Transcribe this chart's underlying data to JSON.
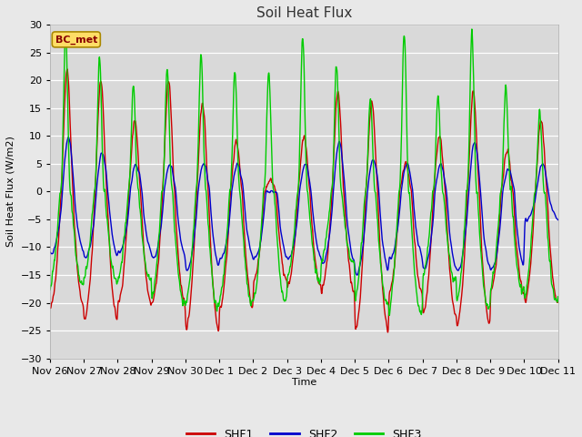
{
  "title": "Soil Heat Flux",
  "xlabel": "Time",
  "ylabel": "Soil Heat Flux (W/m2)",
  "ylim": [
    -30,
    30
  ],
  "yticks": [
    -30,
    -25,
    -20,
    -15,
    -10,
    -5,
    0,
    5,
    10,
    15,
    20,
    25,
    30
  ],
  "fig_facecolor": "#e8e8e8",
  "plot_bg_color": "#d9d9d9",
  "line_colors": {
    "SHF1": "#cc0000",
    "SHF2": "#0000cc",
    "SHF3": "#00cc00"
  },
  "line_width": 1.0,
  "legend_label_box": "BC_met",
  "legend_label_box_facecolor": "#ffdd66",
  "legend_label_box_edgecolor": "#aa8800",
  "legend_label_box_text_color": "#880000",
  "xtick_labels": [
    "Nov 26",
    "Nov 27",
    "Nov 28",
    "Nov 29",
    "Nov 30",
    "Dec 1",
    "Dec 2",
    "Dec 3",
    "Dec 4",
    "Dec 5",
    "Dec 6",
    "Dec 7",
    "Dec 8",
    "Dec 9",
    "Dec 10",
    "Dec 11"
  ],
  "num_days": 15,
  "points_per_day": 96,
  "shf1_day_peaks": [
    22,
    20,
    13,
    20,
    16,
    9,
    2,
    10,
    18,
    16,
    5,
    10,
    18,
    7,
    13
  ],
  "shf1_night_troughs": [
    -21,
    -23,
    -20,
    -20,
    -25,
    -21,
    -16,
    -17,
    -18,
    -25,
    -18,
    -22,
    -24,
    -18,
    -20
  ],
  "shf2_day_peaks": [
    10,
    7,
    5,
    5,
    5,
    5,
    0,
    5,
    9,
    6,
    5,
    5,
    9,
    4,
    5
  ],
  "shf2_night_troughs": [
    -11,
    -12,
    -11,
    -12,
    -14,
    -12,
    -12,
    -12,
    -13,
    -15,
    -12,
    -14,
    -14,
    -14,
    -5
  ],
  "shf3_day_peaks": [
    29,
    24,
    19,
    22,
    25,
    22,
    22,
    28,
    23,
    17,
    29,
    17,
    29,
    19,
    15
  ],
  "shf3_night_troughs": [
    -17,
    -16,
    -16,
    -20,
    -21,
    -20,
    -20,
    -16,
    -13,
    -20,
    -22,
    -16,
    -21,
    -18,
    -20
  ]
}
